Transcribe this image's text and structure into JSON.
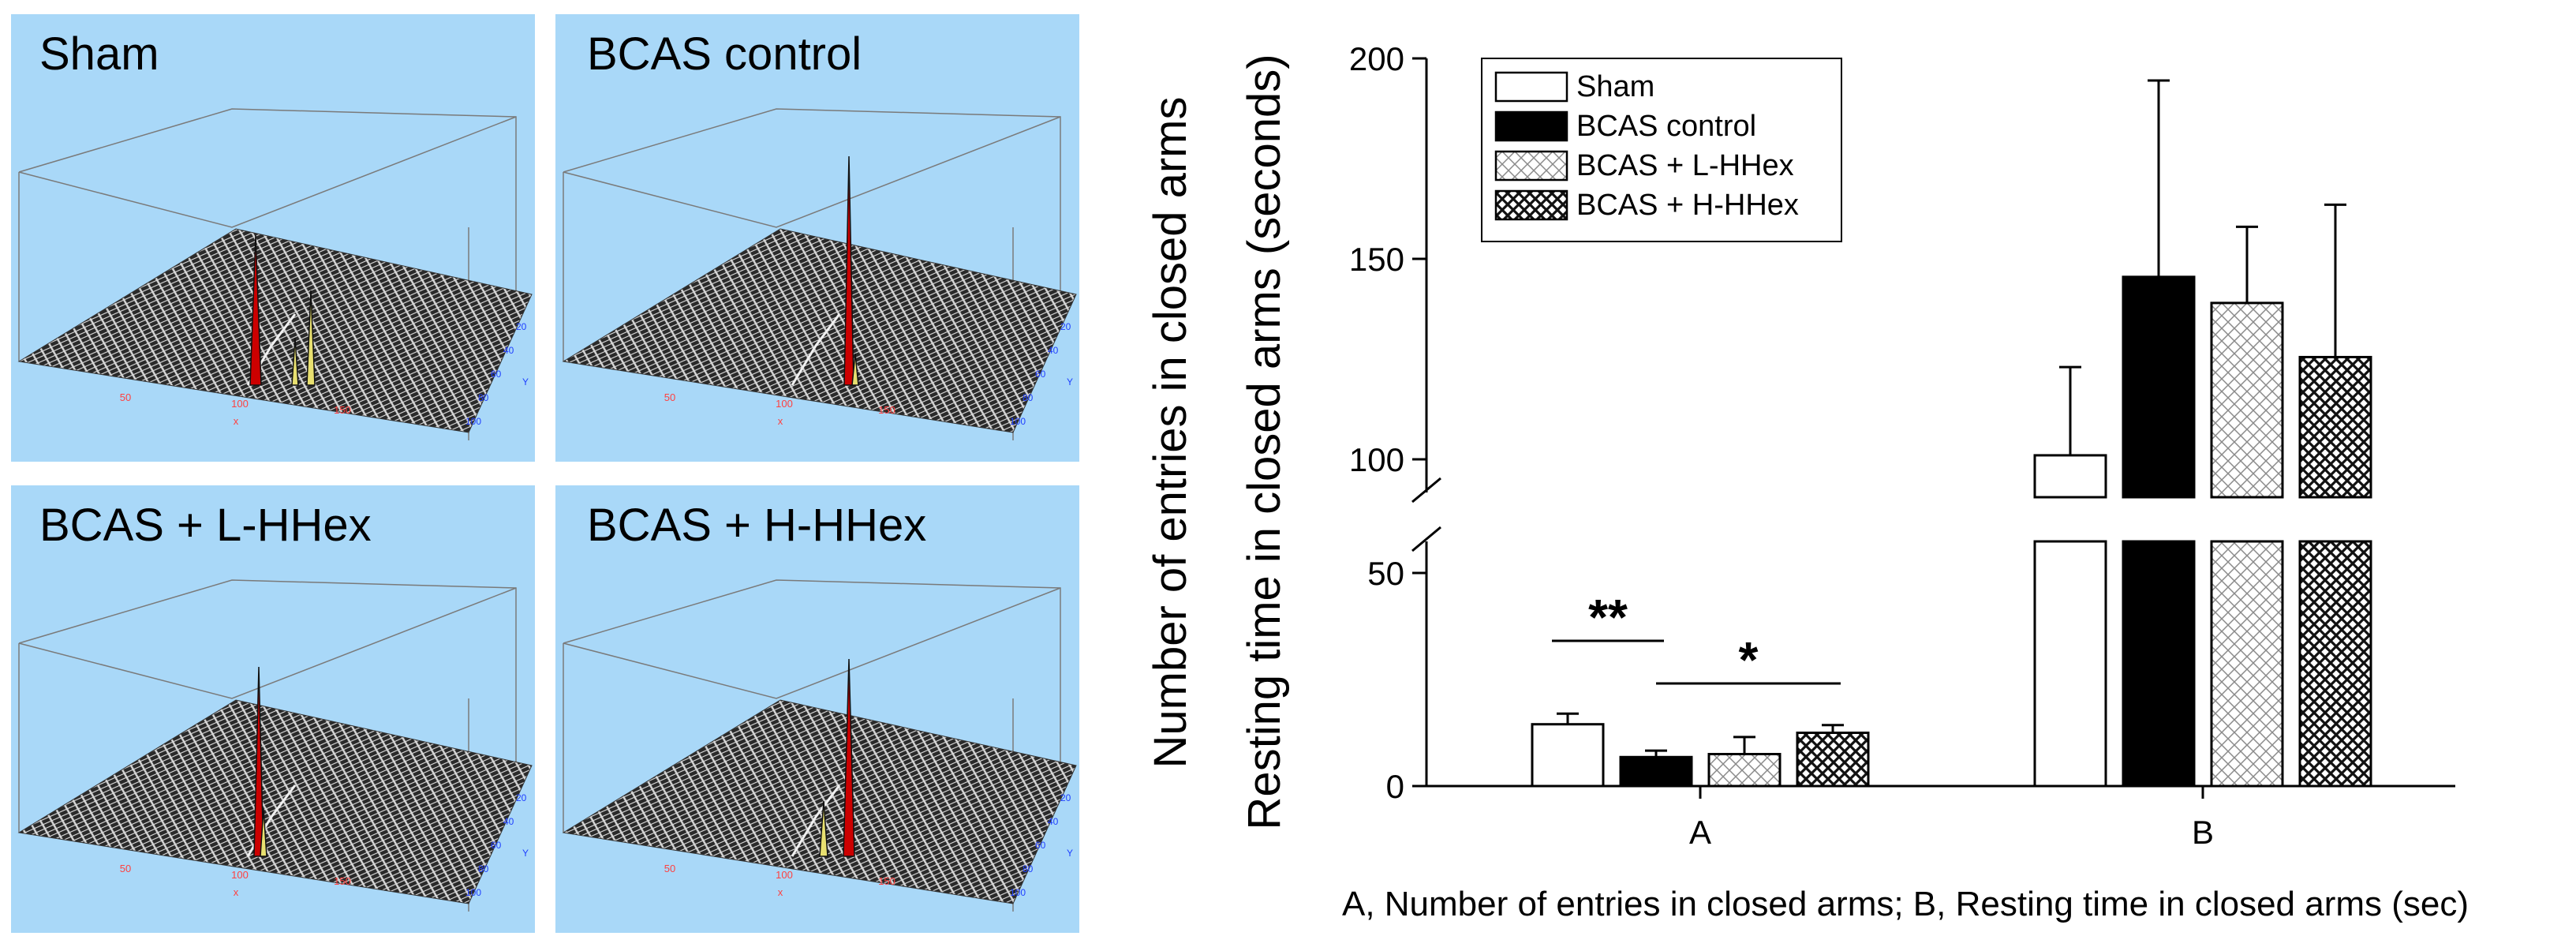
{
  "panels": [
    {
      "title": "Sham"
    },
    {
      "title": "BCAS control"
    },
    {
      "title": "BCAS + L-HHex"
    },
    {
      "title": "BCAS + H-HHex"
    }
  ],
  "panel_axis_labels": {
    "x_title": "x",
    "y_title": "Y",
    "x_ticks": [
      "50",
      "100",
      "150"
    ],
    "y_ticks": [
      "20",
      "40",
      "60",
      "80",
      "100"
    ]
  },
  "colors": {
    "panel_background": "#a9d8f8",
    "peak_red": "#cc0000",
    "peak_yellow": "#e8e070",
    "mesh_gray": "#6e6e6e",
    "x_label_color": "#ff4040",
    "y_label_color": "#2040ff"
  },
  "chart_data": {
    "type": "bar",
    "ylabel_line1": "Number of entries in closed arms",
    "ylabel_line2": "Resting time in closed arms (seconds)",
    "xlabel": "A, Number of entries in closed arms; B, Resting time in closed arms (sec)",
    "categories": [
      "A",
      "B"
    ],
    "axis_break": {
      "lower_range": [
        0,
        50
      ],
      "upper_range": [
        100,
        200
      ]
    },
    "yticks": [
      0,
      50,
      100,
      150,
      200
    ],
    "ytick_labels": [
      "0",
      "50",
      "100",
      "150",
      "200"
    ],
    "series": [
      {
        "name": "Sham",
        "pattern": "white",
        "values": [
          14.5,
          101
        ],
        "errors": [
          2.5,
          22
        ]
      },
      {
        "name": "BCAS control",
        "pattern": "black",
        "values": [
          6.8,
          145.5
        ],
        "errors": [
          1.5,
          49
        ]
      },
      {
        "name": "BCAS + L-HHex",
        "pattern": "fine-check",
        "values": [
          7.5,
          139
        ],
        "errors": [
          4,
          19
        ]
      },
      {
        "name": "BCAS + H-HHex",
        "pattern": "coarse-check",
        "values": [
          12.5,
          125.5
        ],
        "errors": [
          1.8,
          38
        ]
      }
    ],
    "significance": [
      {
        "label": "**",
        "between": [
          "Sham",
          "BCAS control"
        ],
        "category": "A"
      },
      {
        "label": "*",
        "between": [
          "BCAS control",
          "BCAS + H-HHex"
        ],
        "category": "A"
      }
    ],
    "legend_position": "top-left"
  }
}
